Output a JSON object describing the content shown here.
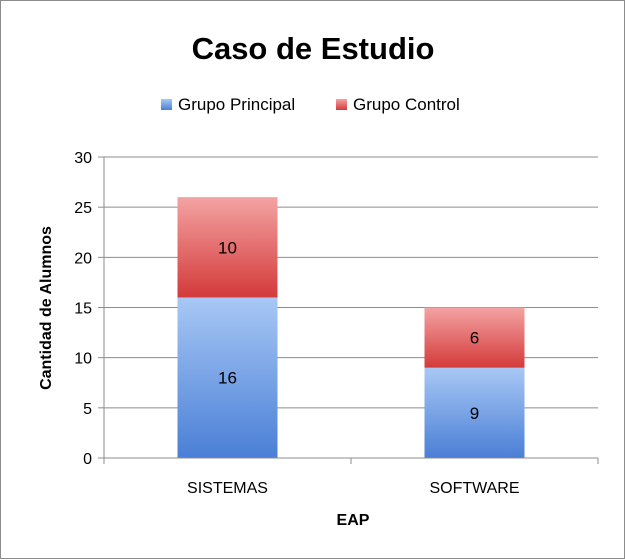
{
  "chart_data": {
    "type": "bar",
    "stacked": true,
    "title": "Caso de Estudio",
    "xlabel": "EAP",
    "ylabel": "Cantidad de Alumnos",
    "categories": [
      "SISTEMAS",
      "SOFTWARE"
    ],
    "series": [
      {
        "name": "Grupo Principal",
        "values": [
          16,
          9
        ],
        "color": "#4a7fd6",
        "color_light": "#a8c8f5"
      },
      {
        "name": "Grupo Control",
        "values": [
          10,
          6
        ],
        "color": "#d43a3a",
        "color_light": "#f4a3a3"
      }
    ],
    "ylim": [
      0,
      30
    ],
    "yticks": [
      0,
      5,
      10,
      15,
      20,
      25,
      30
    ],
    "grid": true,
    "legend_position": "top"
  }
}
